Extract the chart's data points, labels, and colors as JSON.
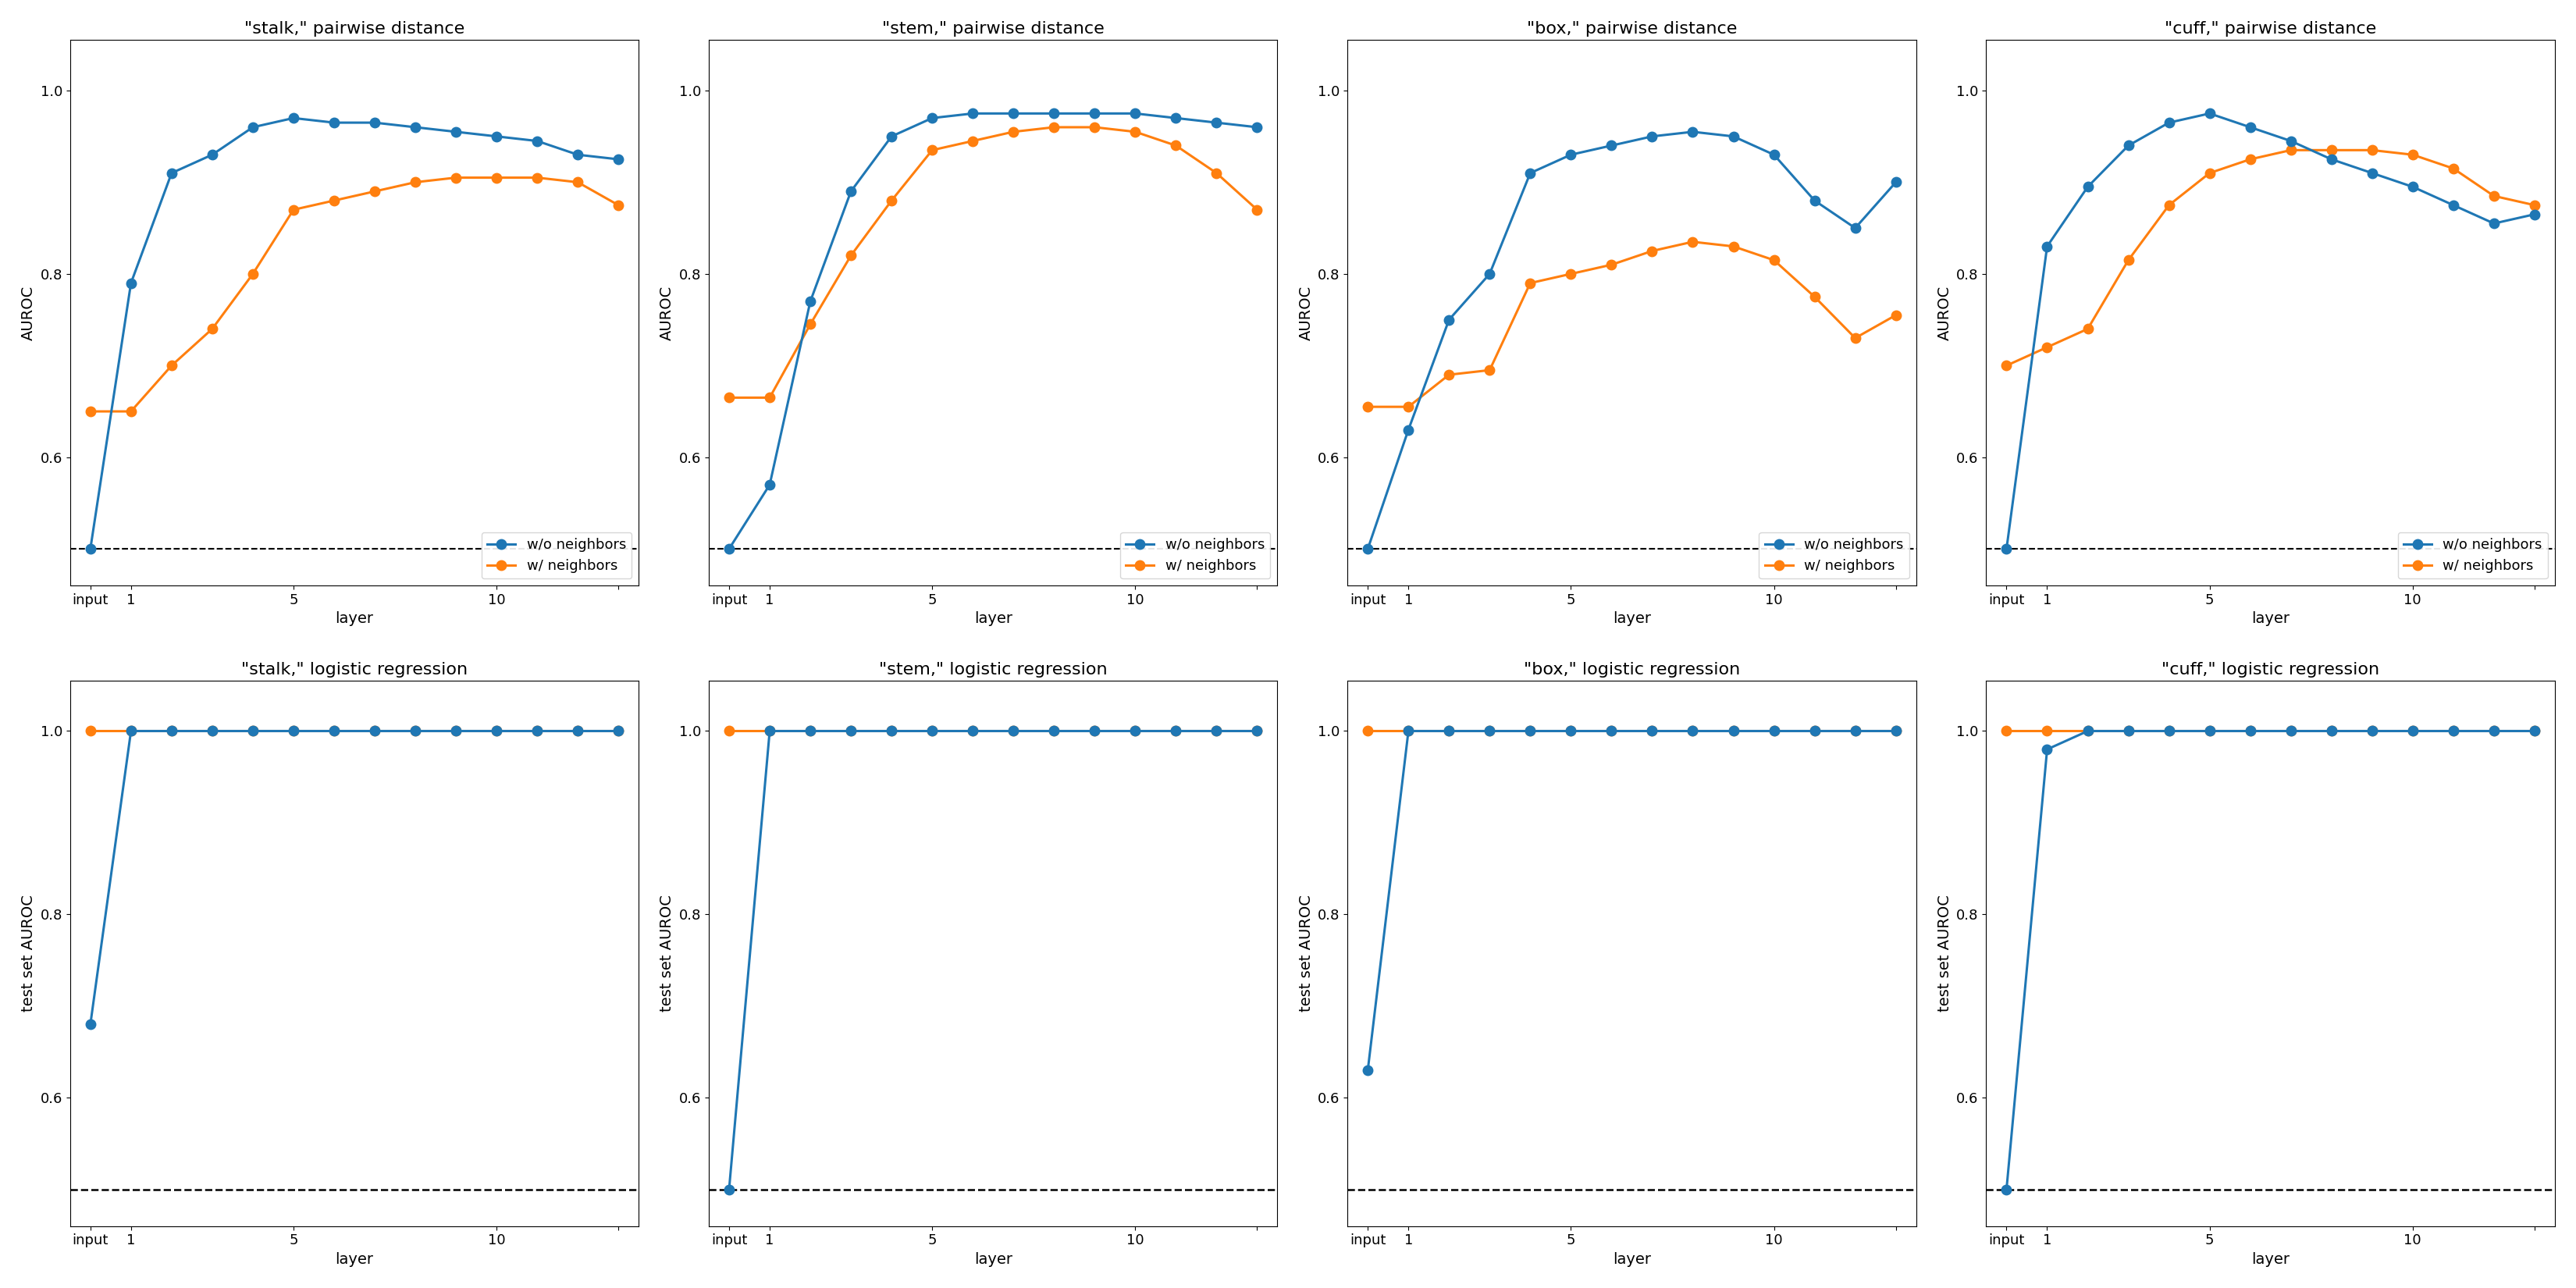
{
  "titles_row1": [
    "\"stalk,\" pairwise distance",
    "\"stem,\" pairwise distance",
    "\"box,\" pairwise distance",
    "\"cuff,\" pairwise distance"
  ],
  "titles_row2": [
    "\"stalk,\" logistic regression",
    "\"stem,\" logistic regression",
    "\"box,\" logistic regression",
    "\"cuff,\" logistic regression"
  ],
  "xlabel": "layer",
  "ylabel_row1": "AUROC",
  "ylabel_row2": "test set AUROC",
  "x_positions": [
    0,
    1,
    2,
    3,
    4,
    5,
    6,
    7,
    8,
    9,
    10,
    11,
    12,
    13
  ],
  "x_tick_positions": [
    0,
    1,
    5,
    10,
    13
  ],
  "x_tick_labels": [
    "input",
    "1",
    "5",
    "10",
    ""
  ],
  "chance_level": 0.5,
  "color_without": "#1f77b4",
  "color_with": "#ff7f0e",
  "row1_without_neighbors": [
    [
      0.5,
      0.79,
      0.91,
      0.93,
      0.96,
      0.97,
      0.965,
      0.965,
      0.96,
      0.955,
      0.95,
      0.945,
      0.93,
      0.925
    ],
    [
      0.5,
      0.57,
      0.77,
      0.89,
      0.95,
      0.97,
      0.975,
      0.975,
      0.975,
      0.975,
      0.975,
      0.97,
      0.965,
      0.96
    ],
    [
      0.5,
      0.63,
      0.75,
      0.8,
      0.91,
      0.93,
      0.94,
      0.95,
      0.955,
      0.95,
      0.93,
      0.88,
      0.85,
      0.9
    ],
    [
      0.5,
      0.83,
      0.895,
      0.94,
      0.965,
      0.975,
      0.96,
      0.945,
      0.925,
      0.91,
      0.895,
      0.875,
      0.855,
      0.865
    ]
  ],
  "row1_with_neighbors": [
    [
      0.65,
      0.65,
      0.7,
      0.74,
      0.8,
      0.87,
      0.88,
      0.89,
      0.9,
      0.905,
      0.905,
      0.905,
      0.9,
      0.875
    ],
    [
      0.665,
      0.665,
      0.745,
      0.82,
      0.88,
      0.935,
      0.945,
      0.955,
      0.96,
      0.96,
      0.955,
      0.94,
      0.91,
      0.87
    ],
    [
      0.655,
      0.655,
      0.69,
      0.695,
      0.79,
      0.8,
      0.81,
      0.825,
      0.835,
      0.83,
      0.815,
      0.775,
      0.73,
      0.755
    ],
    [
      0.7,
      0.72,
      0.74,
      0.815,
      0.875,
      0.91,
      0.925,
      0.935,
      0.935,
      0.935,
      0.93,
      0.915,
      0.885,
      0.875
    ]
  ],
  "row2_without_neighbors": [
    [
      0.68,
      1.0,
      1.0,
      1.0,
      1.0,
      1.0,
      1.0,
      1.0,
      1.0,
      1.0,
      1.0,
      1.0,
      1.0,
      1.0
    ],
    [
      0.5,
      1.0,
      1.0,
      1.0,
      1.0,
      1.0,
      1.0,
      1.0,
      1.0,
      1.0,
      1.0,
      1.0,
      1.0,
      1.0
    ],
    [
      0.63,
      1.0,
      1.0,
      1.0,
      1.0,
      1.0,
      1.0,
      1.0,
      1.0,
      1.0,
      1.0,
      1.0,
      1.0,
      1.0
    ],
    [
      0.5,
      0.98,
      1.0,
      1.0,
      1.0,
      1.0,
      1.0,
      1.0,
      1.0,
      1.0,
      1.0,
      1.0,
      1.0,
      1.0
    ]
  ],
  "row2_with_neighbors": [
    [
      1.0,
      1.0,
      1.0,
      1.0,
      1.0,
      1.0,
      1.0,
      1.0,
      1.0,
      1.0,
      1.0,
      1.0,
      1.0,
      1.0
    ],
    [
      1.0,
      1.0,
      1.0,
      1.0,
      1.0,
      1.0,
      1.0,
      1.0,
      1.0,
      1.0,
      1.0,
      1.0,
      1.0,
      1.0
    ],
    [
      1.0,
      1.0,
      1.0,
      1.0,
      1.0,
      1.0,
      1.0,
      1.0,
      1.0,
      1.0,
      1.0,
      1.0,
      1.0,
      1.0
    ],
    [
      1.0,
      1.0,
      1.0,
      1.0,
      1.0,
      1.0,
      1.0,
      1.0,
      1.0,
      1.0,
      1.0,
      1.0,
      1.0,
      1.0
    ]
  ],
  "legend_labels": [
    "w/o neighbors",
    "w/ neighbors"
  ],
  "ylim_row1": [
    0.46,
    1.055
  ],
  "ylim_row2": [
    0.46,
    1.055
  ],
  "yticks_row1": [
    0.6,
    0.8,
    1.0
  ],
  "yticks_row2": [
    0.6,
    0.8,
    1.0
  ],
  "title_fontsize": 16,
  "label_fontsize": 14,
  "tick_fontsize": 13,
  "legend_fontsize": 13,
  "linewidth": 2.2,
  "markersize": 9
}
